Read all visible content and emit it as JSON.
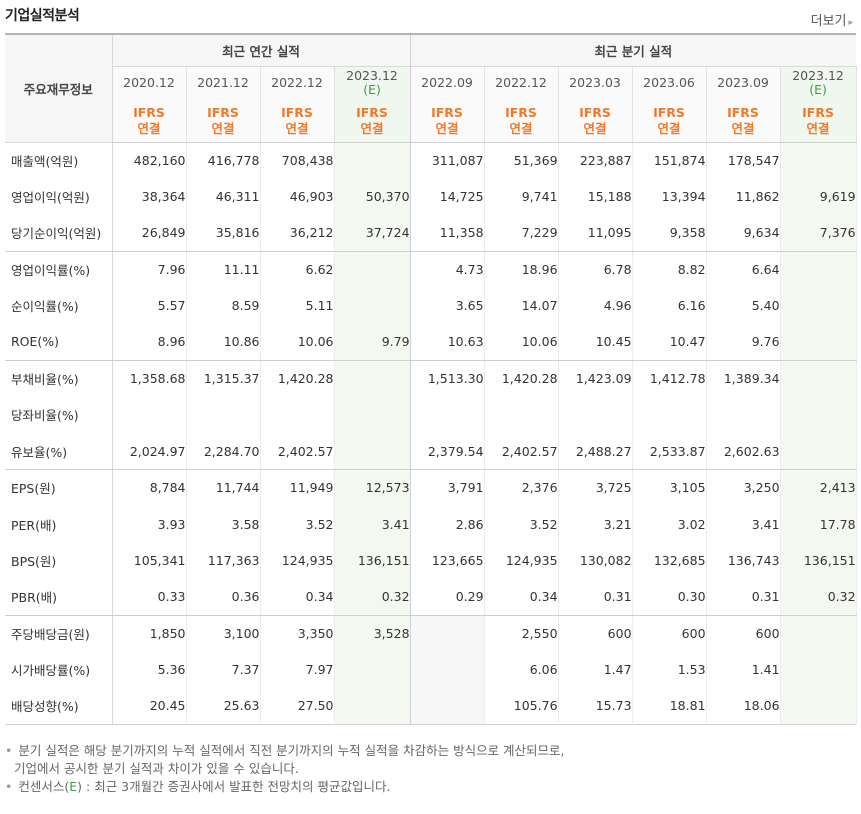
{
  "header": {
    "title": "기업실적분석",
    "more_label": "더보기",
    "more_arrow": "▸"
  },
  "table": {
    "label_header": "주요재무정보",
    "group_annual": "최근 연간 실적",
    "group_quarterly": "최근 분기 실적",
    "periods": [
      {
        "label": "2020.12",
        "est": ""
      },
      {
        "label": "2021.12",
        "est": ""
      },
      {
        "label": "2022.12",
        "est": ""
      },
      {
        "label": "2023.12",
        "est": "(E)"
      },
      {
        "label": "2022.09",
        "est": ""
      },
      {
        "label": "2022.12",
        "est": ""
      },
      {
        "label": "2023.03",
        "est": ""
      },
      {
        "label": "2023.06",
        "est": ""
      },
      {
        "label": "2023.09",
        "est": ""
      },
      {
        "label": "2023.12",
        "est": "(E)"
      }
    ],
    "ifrs_top": "IFRS",
    "ifrs_bottom": "연결",
    "rows": [
      {
        "label": "매출액(억원)",
        "values": [
          "482,160",
          "416,778",
          "708,438",
          "",
          "311,087",
          "51,369",
          "223,887",
          "151,874",
          "178,547",
          ""
        ]
      },
      {
        "label": "영업이익(억원)",
        "values": [
          "38,364",
          "46,311",
          "46,903",
          "50,370",
          "14,725",
          "9,741",
          "15,188",
          "13,394",
          "11,862",
          "9,619"
        ]
      },
      {
        "label": "당기순이익(억원)",
        "values": [
          "26,849",
          "35,816",
          "36,212",
          "37,724",
          "11,358",
          "7,229",
          "11,095",
          "9,358",
          "9,634",
          "7,376"
        ]
      },
      {
        "label": "영업이익률(%)",
        "values": [
          "7.96",
          "11.11",
          "6.62",
          "",
          "4.73",
          "18.96",
          "6.78",
          "8.82",
          "6.64",
          ""
        ]
      },
      {
        "label": "순이익률(%)",
        "values": [
          "5.57",
          "8.59",
          "5.11",
          "",
          "3.65",
          "14.07",
          "4.96",
          "6.16",
          "5.40",
          ""
        ]
      },
      {
        "label": "ROE(%)",
        "values": [
          "8.96",
          "10.86",
          "10.06",
          "9.79",
          "10.63",
          "10.06",
          "10.45",
          "10.47",
          "9.76",
          ""
        ]
      },
      {
        "label": "부채비율(%)",
        "values": [
          "1,358.68",
          "1,315.37",
          "1,420.28",
          "",
          "1,513.30",
          "1,420.28",
          "1,423.09",
          "1,412.78",
          "1,389.34",
          ""
        ]
      },
      {
        "label": "당좌비율(%)",
        "values": [
          "",
          "",
          "",
          "",
          "",
          "",
          "",
          "",
          "",
          ""
        ]
      },
      {
        "label": "유보율(%)",
        "values": [
          "2,024.97",
          "2,284.70",
          "2,402.57",
          "",
          "2,379.54",
          "2,402.57",
          "2,488.27",
          "2,533.87",
          "2,602.63",
          ""
        ]
      },
      {
        "label": "EPS(원)",
        "values": [
          "8,784",
          "11,744",
          "11,949",
          "12,573",
          "3,791",
          "2,376",
          "3,725",
          "3,105",
          "3,250",
          "2,413"
        ]
      },
      {
        "label": "PER(배)",
        "values": [
          "3.93",
          "3.58",
          "3.52",
          "3.41",
          "2.86",
          "3.52",
          "3.21",
          "3.02",
          "3.41",
          "17.78"
        ]
      },
      {
        "label": "BPS(원)",
        "values": [
          "105,341",
          "117,363",
          "124,935",
          "136,151",
          "123,665",
          "124,935",
          "130,082",
          "132,685",
          "136,743",
          "136,151"
        ]
      },
      {
        "label": "PBR(배)",
        "values": [
          "0.33",
          "0.36",
          "0.34",
          "0.32",
          "0.29",
          "0.34",
          "0.31",
          "0.30",
          "0.31",
          "0.32"
        ]
      },
      {
        "label": "주당배당금(원)",
        "values": [
          "1,850",
          "3,100",
          "3,350",
          "3,528",
          "",
          "2,550",
          "600",
          "600",
          "600",
          ""
        ]
      },
      {
        "label": "시가배당률(%)",
        "values": [
          "5.36",
          "7.37",
          "7.97",
          "",
          "",
          "6.06",
          "1.47",
          "1.53",
          "1.41",
          ""
        ]
      },
      {
        "label": "배당성향(%)",
        "values": [
          "20.45",
          "25.63",
          "27.50",
          "",
          "",
          "105.76",
          "15.73",
          "18.81",
          "18.06",
          ""
        ]
      }
    ]
  },
  "notes": {
    "bullet": "•",
    "line1": "분기 실적은 해당 분기까지의 누적 실적에서 직전 분기까지의 누적 실적을 차감하는 방식으로 계산되므로,",
    "line2": "기업에서 공시한 분기 실적과 차이가 있을 수 있습니다.",
    "line3_prefix": "컨센서스(",
    "line3_mark": "E",
    "line3_suffix": ") : 최근 3개월간 증권사에서 발표한 전망치의 평균값입니다."
  }
}
